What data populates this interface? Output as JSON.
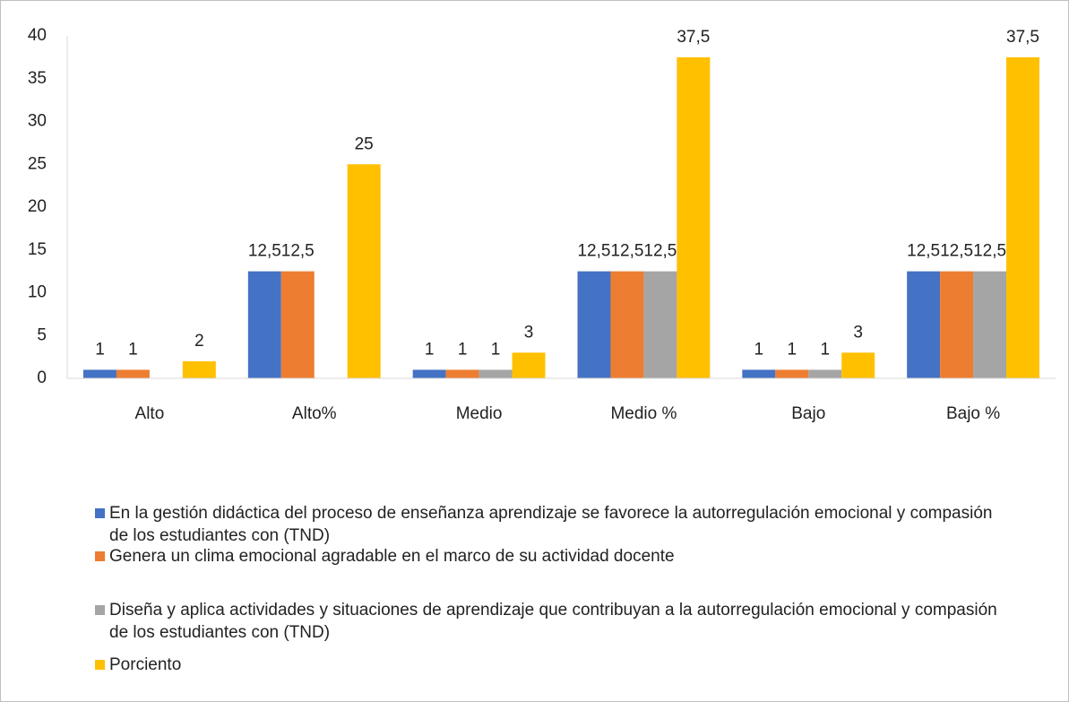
{
  "chart_data": {
    "type": "bar",
    "categories": [
      "Alto",
      "Alto%",
      "Medio",
      "Medio %",
      "Bajo",
      "Bajo %"
    ],
    "series": [
      {
        "name": "En la gestión didáctica del proceso de enseñanza aprendizaje se favorece la autorregulación emocional y compasión de los estudiantes con (TND)",
        "color": "#4472c4",
        "values": [
          1,
          12.5,
          1,
          12.5,
          1,
          12.5
        ],
        "value_labels": [
          "1",
          "12,5",
          "1",
          "12,5",
          "1",
          "12,5"
        ]
      },
      {
        "name": "Genera un clima emocional agradable en el marco de su actividad docente",
        "color": "#ed7d31",
        "values": [
          1,
          12.5,
          1,
          12.5,
          1,
          12.5
        ],
        "value_labels": [
          "1",
          "12,5",
          "1",
          "12,5",
          "1",
          "12,5"
        ]
      },
      {
        "name": "Diseña y aplica actividades y situaciones de aprendizaje que contribuyan a la autorregulación emocional y compasión de los estudiantes con (TND)",
        "color": "#a5a5a5",
        "values": [
          null,
          null,
          1,
          12.5,
          1,
          12.5
        ],
        "value_labels": [
          null,
          null,
          "1",
          "12,5",
          "1",
          "12,5"
        ]
      },
      {
        "name": "Porciento",
        "color": "#ffc000",
        "values": [
          2,
          25,
          3,
          37.5,
          3,
          37.5
        ],
        "value_labels": [
          "2",
          "25",
          "3",
          "37,5",
          "3",
          "37,5"
        ]
      }
    ],
    "ylim": [
      0,
      40
    ],
    "yticks": [
      0,
      5,
      10,
      15,
      20,
      25,
      30,
      35,
      40
    ],
    "grid": false,
    "legend": "bottom"
  }
}
